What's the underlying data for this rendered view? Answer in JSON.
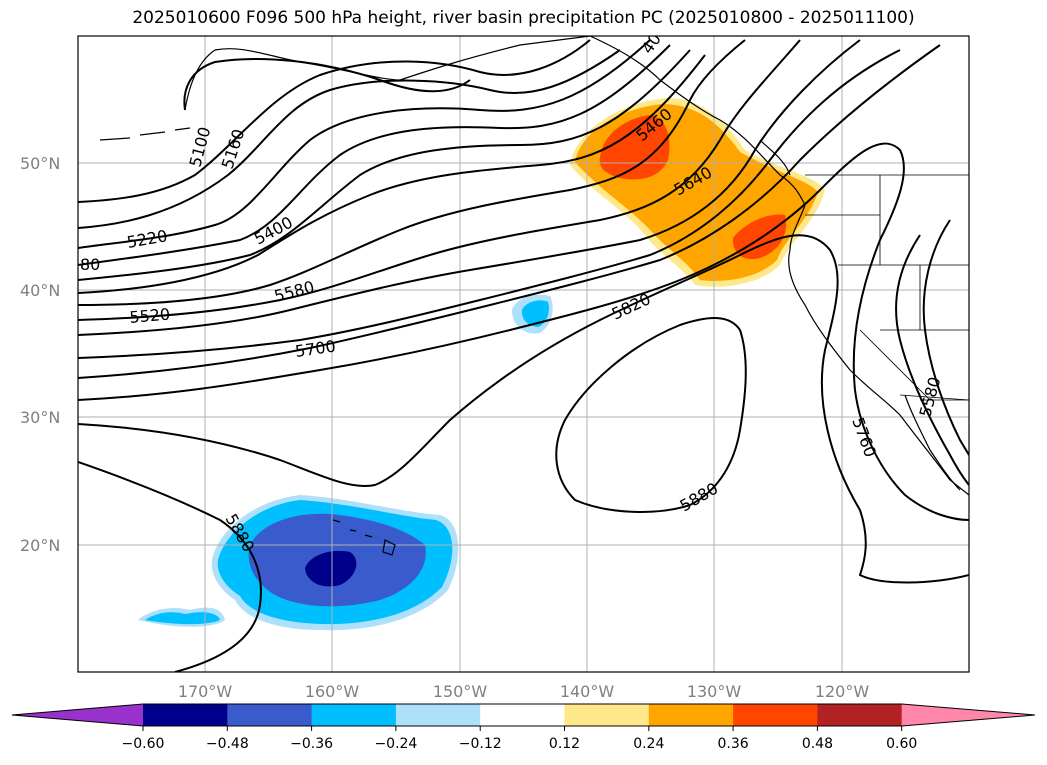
{
  "title": "2025010600 F096 500 hPa height, river basin precipitation PC (2025010800 - 2025011100)",
  "map": {
    "lat_labels": [
      "50°N",
      "40°N",
      "30°N",
      "20°N"
    ],
    "lon_labels": [
      "170°W",
      "160°W",
      "150°W",
      "140°W",
      "130°W",
      "120°W"
    ],
    "contour_labels": [
      "5100",
      "5160",
      "5220",
      "80",
      "5400",
      "5520",
      "5580",
      "5700",
      "5460",
      "5640",
      "5820",
      "5880",
      "5880",
      "5580",
      "5760",
      "40"
    ]
  },
  "colorbar": {
    "labels": [
      "−0.60",
      "−0.48",
      "−0.36",
      "−0.24",
      "−0.12",
      "0.12",
      "0.24",
      "0.36",
      "0.48",
      "0.60"
    ],
    "colors": [
      "#9932cc",
      "#00008b",
      "#3a5bcb",
      "#00bfff",
      "#aee0fa",
      "#ffffff",
      "#ffe88a",
      "#ffa500",
      "#ff4500",
      "#b22222",
      "#ff88aa"
    ]
  }
}
